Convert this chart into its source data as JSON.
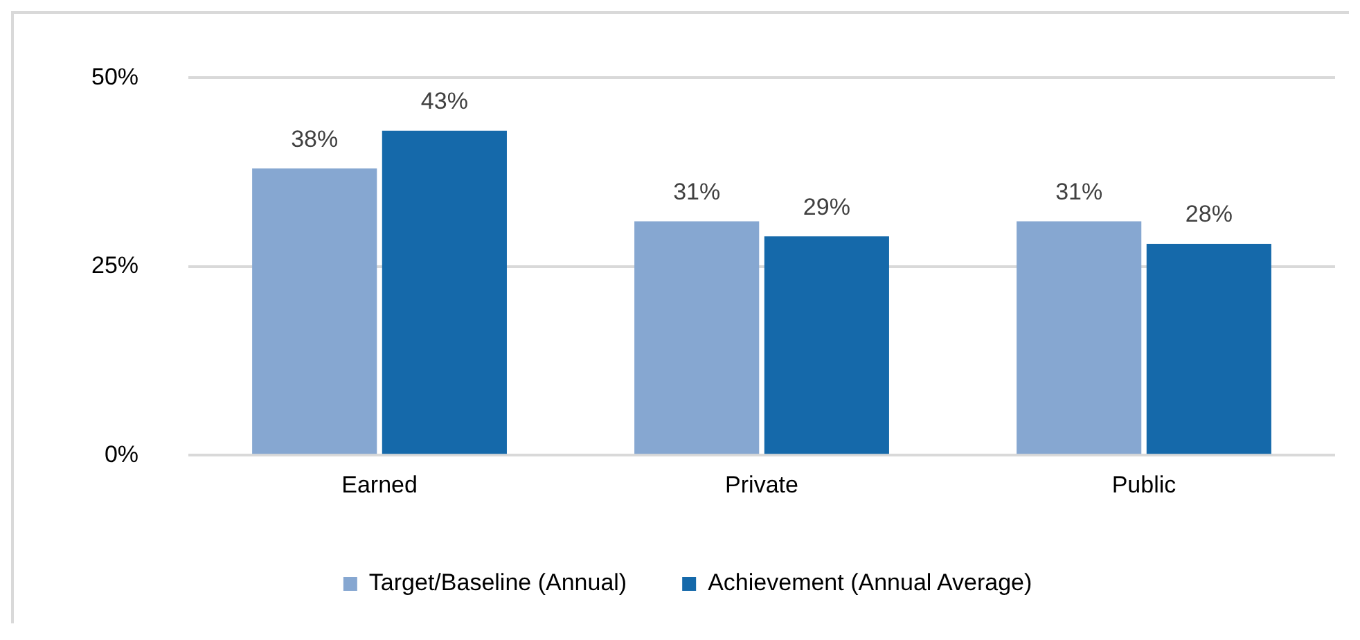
{
  "chart_data": {
    "type": "bar",
    "categories": [
      "Earned",
      "Private",
      "Public"
    ],
    "series": [
      {
        "name": "Target/Baseline (Annual)",
        "color": "#86a7d1",
        "values": [
          38,
          31,
          31
        ],
        "value_labels": [
          "38%",
          "31%",
          "31%"
        ]
      },
      {
        "name": "Achievement (Annual Average)",
        "color": "#1569aa",
        "values": [
          43,
          29,
          28
        ],
        "value_labels": [
          "43%",
          "29%",
          "28%"
        ]
      }
    ],
    "ylim": [
      0,
      50
    ],
    "yticks": [
      {
        "value": 0,
        "label": "0%"
      },
      {
        "value": 25,
        "label": "25%"
      },
      {
        "value": 50,
        "label": "50%"
      }
    ],
    "grid": "y",
    "legend": "bottom"
  }
}
